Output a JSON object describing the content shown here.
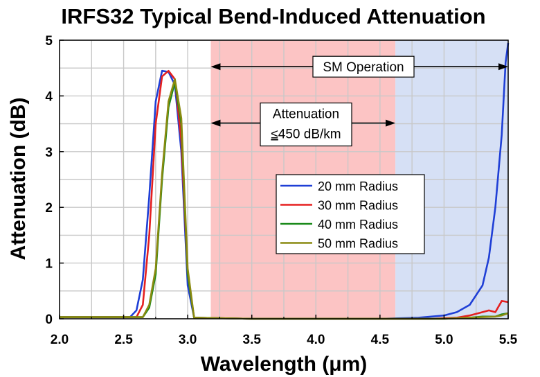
{
  "chart_data": {
    "type": "line",
    "title": "IRFS32 Typical Bend-Induced Attenuation",
    "xlabel": "Wavelength (μm)",
    "ylabel": "Attenuation (dB)",
    "xlim": [
      2.0,
      5.5
    ],
    "ylim": [
      0,
      5
    ],
    "xticks": [
      "2.0",
      "2.5",
      "3.0",
      "3.5",
      "4.0",
      "4.5",
      "5.0",
      "5.5"
    ],
    "yticks": [
      "0",
      "1",
      "2",
      "3",
      "4",
      "5"
    ],
    "xtick_values": [
      2.0,
      2.5,
      3.0,
      3.5,
      4.0,
      4.5,
      5.0,
      5.5
    ],
    "ytick_values": [
      0,
      1,
      2,
      3,
      4,
      5
    ],
    "grid": true,
    "legend_position": "center-right",
    "regions": [
      {
        "x_start": 3.18,
        "x_end": 4.62,
        "color": "#fcc4c4"
      },
      {
        "x_start": 4.62,
        "x_end": 5.5,
        "color": "#d6e0f5"
      }
    ],
    "annotations": {
      "sm_operation": {
        "text": "SM Operation",
        "x_start": 3.18,
        "x_end": 5.5,
        "y": 4.5
      },
      "attenuation": {
        "line1": "Attenuation",
        "line2_symbol": "≤",
        "line2_rest": "450 dB/km",
        "x_start": 3.18,
        "x_end": 4.62,
        "y": 3.5
      }
    },
    "series": [
      {
        "name": "20 mm Radius",
        "color": "#1f3fd6",
        "x": [
          2.0,
          2.55,
          2.6,
          2.65,
          2.7,
          2.75,
          2.8,
          2.85,
          2.9,
          2.95,
          3.0,
          3.05,
          3.5,
          4.0,
          4.5,
          4.8,
          5.0,
          5.1,
          5.2,
          5.3,
          5.35,
          5.4,
          5.45,
          5.48,
          5.5
        ],
        "y": [
          0.03,
          0.03,
          0.15,
          0.7,
          2.2,
          3.9,
          4.45,
          4.43,
          4.2,
          3.0,
          0.6,
          0.02,
          0.0,
          0.0,
          0.0,
          0.02,
          0.06,
          0.12,
          0.25,
          0.6,
          1.1,
          2.0,
          3.3,
          4.6,
          4.95
        ]
      },
      {
        "name": "30 mm Radius",
        "color": "#e52020",
        "x": [
          2.0,
          2.6,
          2.65,
          2.7,
          2.75,
          2.8,
          2.85,
          2.9,
          2.95,
          3.0,
          3.05,
          3.5,
          4.0,
          4.5,
          4.9,
          5.1,
          5.2,
          5.3,
          5.35,
          5.4,
          5.45,
          5.5
        ],
        "y": [
          0.03,
          0.03,
          0.25,
          1.5,
          3.5,
          4.35,
          4.45,
          4.3,
          3.2,
          0.8,
          0.02,
          0.0,
          0.0,
          0.0,
          0.0,
          0.02,
          0.06,
          0.12,
          0.15,
          0.12,
          0.32,
          0.3
        ]
      },
      {
        "name": "40 mm Radius",
        "color": "#1a8a1a",
        "x": [
          2.0,
          2.65,
          2.7,
          2.75,
          2.8,
          2.85,
          2.9,
          2.95,
          3.0,
          3.05,
          3.5,
          4.0,
          4.5,
          5.0,
          5.2,
          5.3,
          5.4,
          5.45,
          5.5
        ],
        "y": [
          0.03,
          0.03,
          0.2,
          0.8,
          2.5,
          3.8,
          4.25,
          3.5,
          0.8,
          0.02,
          0.0,
          0.0,
          0.0,
          0.0,
          0.02,
          0.04,
          0.04,
          0.08,
          0.1
        ]
      },
      {
        "name": "50 mm Radius",
        "color": "#8a8a10",
        "x": [
          2.0,
          2.65,
          2.7,
          2.75,
          2.8,
          2.85,
          2.9,
          2.95,
          3.0,
          3.05,
          3.5,
          4.0,
          4.5,
          5.0,
          5.2,
          5.3,
          5.4,
          5.45,
          5.5
        ],
        "y": [
          0.03,
          0.03,
          0.25,
          0.9,
          2.6,
          3.9,
          4.3,
          3.6,
          0.9,
          0.02,
          0.0,
          0.0,
          0.0,
          0.0,
          0.02,
          0.03,
          0.04,
          0.06,
          0.1
        ]
      }
    ]
  }
}
